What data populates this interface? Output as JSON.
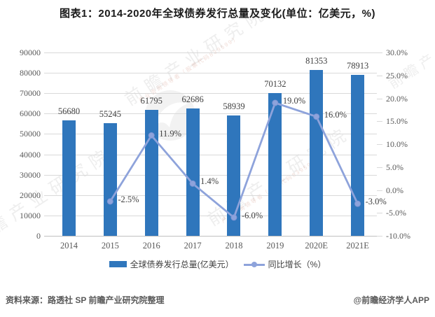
{
  "title": "图表1：2014-2020年全球债券发行总量及变化(单位：亿美元，%)",
  "footer": {
    "source": "资料来源：路透社 SP 前瞻产业研究院整理",
    "brand": "@前瞻经济学人APP"
  },
  "watermark": {
    "main": "前瞻产业研究院",
    "sub": "产业咨询领导者（股票代码839599）"
  },
  "colors": {
    "bar": "#2f76bc",
    "line": "#8ea3db",
    "line_marker_edge": "#7e95d4",
    "grid": "#d9d9d9",
    "axis_text": "#595959",
    "label_text": "#404040"
  },
  "chart_data": {
    "type": "combo",
    "title": "图表1：2014-2020年全球债券发行总量及变化(单位：亿美元，%)",
    "categories": [
      "2014",
      "2015",
      "2016",
      "2017",
      "2018",
      "2019",
      "2020E",
      "2021E"
    ],
    "series": [
      {
        "name": "全球债券发行总量(亿美元）",
        "kind": "bar",
        "axis": "left",
        "values": [
          56680,
          55245,
          61795,
          62686,
          58939,
          70132,
          81353,
          78913
        ],
        "value_labels": [
          "56680",
          "55245",
          "61795",
          "62686",
          "58939",
          "70132",
          "81353",
          "78913"
        ]
      },
      {
        "name": "同比增长（%）",
        "kind": "line",
        "axis": "right",
        "values": [
          null,
          -2.5,
          11.9,
          1.4,
          -6.0,
          19.0,
          16.0,
          -3.0
        ],
        "point_labels": [
          "",
          "-2.5%",
          "11.9%",
          "1.4%",
          "-6.0%",
          "19.0%",
          "16.0%",
          "-3.0%"
        ]
      }
    ],
    "left_axis": {
      "min": 0,
      "max": 90000,
      "step": 10000,
      "tick_labels": [
        "90000",
        "80000",
        "70000",
        "60000",
        "50000",
        "40000",
        "30000",
        "20000",
        "10000",
        "0"
      ]
    },
    "right_axis": {
      "min": -10,
      "max": 30,
      "step": 5,
      "tick_labels": [
        "30.0%",
        "25.0%",
        "20.0%",
        "15.0%",
        "10.0%",
        "5.0%",
        "0.0%",
        "-5.0%",
        "-10.0%"
      ]
    },
    "grid": true,
    "legend_position": "bottom"
  }
}
